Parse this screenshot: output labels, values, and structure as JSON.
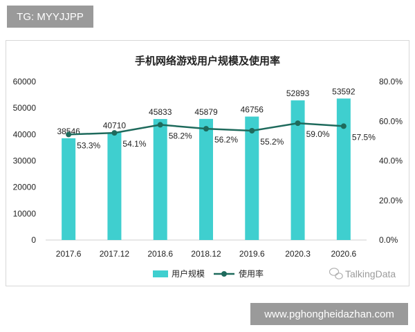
{
  "overlay": {
    "top_left": "TG: MYYJJPP",
    "bottom_right": "www.pghongheidazhan.com"
  },
  "chart_data": {
    "type": "bar",
    "title": "手机网络游戏用户规模及使用率",
    "categories": [
      "2017.6",
      "2017.12",
      "2018.6",
      "2018.12",
      "2019.6",
      "2020.3",
      "2020.6"
    ],
    "series": [
      {
        "name": "用户规模",
        "type": "bar",
        "axis": "left",
        "color": "#3fcfcf",
        "values": [
          38546,
          40710,
          45833,
          45879,
          46756,
          52893,
          53592
        ]
      },
      {
        "name": "使用率",
        "type": "line",
        "axis": "right",
        "color": "#1e6a5c",
        "values": [
          53.3,
          54.1,
          58.2,
          56.2,
          55.2,
          59.0,
          57.5
        ],
        "labels": [
          "53.3%",
          "54.1%",
          "58.2%",
          "56.2%",
          "55.2%",
          "59.0%",
          "57.5%"
        ]
      }
    ],
    "ylim": [
      0,
      60000
    ],
    "yticks": [
      "0",
      "10000",
      "20000",
      "30000",
      "40000",
      "50000",
      "60000"
    ],
    "y2lim": [
      0,
      80
    ],
    "y2ticks": [
      "0.0%",
      "20.0%",
      "40.0%",
      "60.0%",
      "80.0%"
    ],
    "grid": false,
    "legend_position": "bottom",
    "watermark": "TalkingData"
  }
}
